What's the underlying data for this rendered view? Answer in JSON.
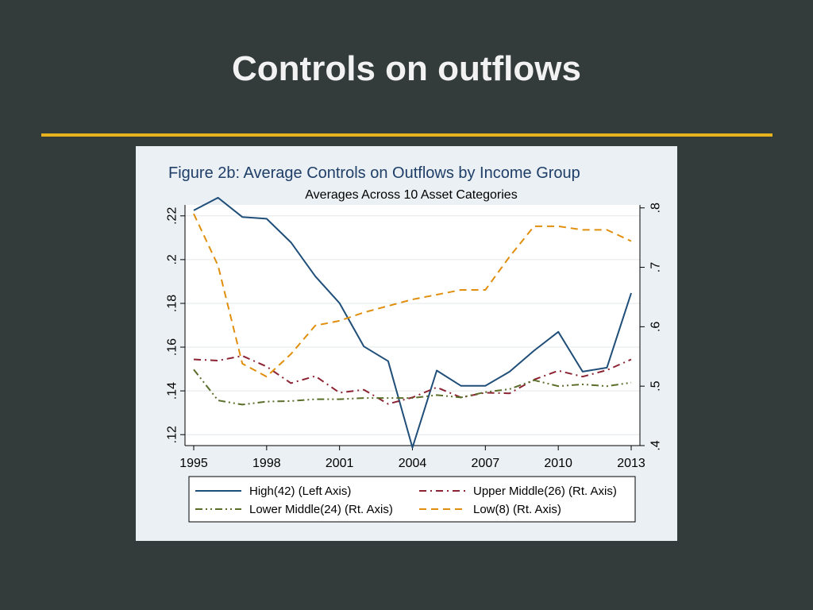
{
  "slide": {
    "title": "Controls on outflows"
  },
  "colors": {
    "background": "#333b3b",
    "accent_rule": "#e6b21d",
    "figure_bg": "#eaf0f3",
    "plot_bg": "#ffffff",
    "title_text": "#1f3e68"
  },
  "chart_data": {
    "type": "line",
    "title": "Figure 2b: Average Controls on Outflows by Income Group",
    "subtitle": "Averages Across 10 Asset Categories",
    "xlabel": "",
    "x": [
      1995,
      1996,
      1997,
      1998,
      1999,
      2000,
      2001,
      2002,
      2003,
      2004,
      2005,
      2006,
      2007,
      2008,
      2009,
      2010,
      2011,
      2012,
      2013
    ],
    "xticks": [
      1995,
      1998,
      2001,
      2004,
      2007,
      2010,
      2013
    ],
    "xtick_labels": [
      "1995",
      "1998",
      "2001",
      "2004",
      "2007",
      "2010",
      "2013"
    ],
    "xlim": [
      1995,
      2013
    ],
    "left_axis": {
      "ylim": [
        0.115,
        0.225
      ],
      "ticks": [
        0.12,
        0.14,
        0.16,
        0.18,
        0.2,
        0.22
      ],
      "tick_labels": [
        ".12",
        ".14",
        ".16",
        ".18",
        ".2",
        ".22"
      ]
    },
    "right_axis": {
      "ylim": [
        0.4,
        0.805
      ],
      "ticks": [
        0.4,
        0.5,
        0.6,
        0.7,
        0.8
      ],
      "tick_labels": [
        ".4",
        ".5",
        ".6",
        ".7",
        ".8"
      ]
    },
    "grid": true,
    "legend_position": "bottom",
    "series": [
      {
        "name": "High(42) (Left Axis)",
        "axis": "left",
        "color": "#1f4e79",
        "dash": "solid",
        "values": [
          0.2225,
          0.2283,
          0.2195,
          0.2187,
          0.2079,
          0.1924,
          0.1801,
          0.1603,
          0.1536,
          0.1141,
          0.1493,
          0.1423,
          0.1423,
          0.1488,
          0.1584,
          0.167,
          0.1488,
          0.1506,
          0.1847
        ]
      },
      {
        "name": "Upper Middle(26) (Rt. Axis)",
        "axis": "right",
        "color": "#8b2332",
        "dash": "dashdot",
        "values": [
          0.545,
          0.543,
          0.551,
          0.533,
          0.505,
          0.517,
          0.489,
          0.494,
          0.47,
          0.481,
          0.498,
          0.481,
          0.489,
          0.488,
          0.511,
          0.526,
          0.516,
          0.527,
          0.545
        ]
      },
      {
        "name": "Lower Middle(24) (Rt. Axis)",
        "axis": "right",
        "color": "#5a6e2a",
        "dash": "longdashdot",
        "values": [
          0.528,
          0.476,
          0.469,
          0.474,
          0.475,
          0.478,
          0.478,
          0.48,
          0.48,
          0.48,
          0.485,
          0.481,
          0.49,
          0.495,
          0.51,
          0.5,
          0.503,
          0.5,
          0.506
        ]
      },
      {
        "name": "Low(8) (Rt. Axis)",
        "axis": "right",
        "color": "#e08e0b",
        "dash": "dash",
        "values": [
          0.79,
          0.703,
          0.538,
          0.516,
          0.554,
          0.602,
          0.61,
          0.624,
          0.635,
          0.646,
          0.654,
          0.662,
          0.662,
          0.718,
          0.769,
          0.769,
          0.763,
          0.763,
          0.744
        ]
      }
    ]
  }
}
